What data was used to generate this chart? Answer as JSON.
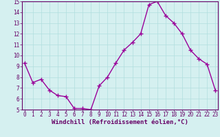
{
  "x": [
    0,
    1,
    2,
    3,
    4,
    5,
    6,
    7,
    8,
    9,
    10,
    11,
    12,
    13,
    14,
    15,
    16,
    17,
    18,
    19,
    20,
    21,
    22,
    23
  ],
  "y": [
    9.3,
    7.5,
    7.8,
    6.8,
    6.3,
    6.2,
    5.1,
    5.1,
    5.0,
    7.2,
    8.0,
    9.3,
    10.5,
    11.2,
    12.0,
    14.7,
    15.0,
    13.7,
    13.0,
    12.0,
    10.5,
    9.7,
    9.2,
    6.8
  ],
  "xlabel": "Windchill (Refroidissement éolien,°C)",
  "ylim": [
    5,
    15
  ],
  "yticks": [
    5,
    6,
    7,
    8,
    9,
    10,
    11,
    12,
    13,
    14,
    15
  ],
  "xticks": [
    0,
    1,
    2,
    3,
    4,
    5,
    6,
    7,
    8,
    9,
    10,
    11,
    12,
    13,
    14,
    15,
    16,
    17,
    18,
    19,
    20,
    21,
    22,
    23
  ],
  "line_color": "#990099",
  "marker": "+",
  "marker_size": 4,
  "line_width": 1.0,
  "bg_color": "#d5f0f0",
  "grid_color": "#b0dede",
  "tick_color": "#660066",
  "label_color": "#660066",
  "xlabel_fontsize": 6.5,
  "tick_fontsize": 5.5
}
